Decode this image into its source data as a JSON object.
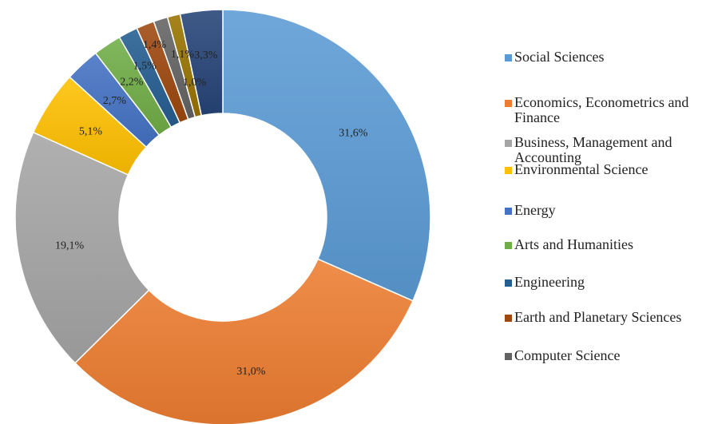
{
  "chart_data": {
    "type": "donut",
    "title": "",
    "series": [
      {
        "name": "Social Sciences",
        "value": 31.6,
        "label": "31,6%",
        "color": "#5B9BD5"
      },
      {
        "name": "Economics, Econometrics and Finance",
        "value": 31.0,
        "label": "31,0%",
        "color": "#ED7D31"
      },
      {
        "name": "Business, Management and Accounting",
        "value": 19.1,
        "label": "19,1%",
        "color": "#A5A5A5"
      },
      {
        "name": "Environmental Science",
        "value": 5.1,
        "label": "5,1%",
        "color": "#FFC000"
      },
      {
        "name": "Energy",
        "value": 2.7,
        "label": "2,7%",
        "color": "#4472C4"
      },
      {
        "name": "Arts and Humanities",
        "value": 2.2,
        "label": "2,2%",
        "color": "#70AD47"
      },
      {
        "name": "Engineering",
        "value": 1.5,
        "label": "1,5%",
        "color": "#255E91"
      },
      {
        "name": "Earth and Planetary Sciences",
        "value": 1.4,
        "label": "1,4%",
        "color": "#9E480E"
      },
      {
        "name": "Computer Science",
        "value": 1.1,
        "label": "1,1%",
        "color": "#636363"
      },
      {
        "name": "",
        "value": 1.0,
        "label": "1,0%",
        "color": "#997300"
      },
      {
        "name": "",
        "value": 3.3,
        "label": "3,3%",
        "color": "#264478"
      }
    ],
    "legend": {
      "placement": "right",
      "items": [
        "Social Sciences",
        "Economics, Econometrics and Finance",
        "Business, Management and Accounting",
        "Environmental Science",
        "Energy",
        "Arts and Humanities",
        "Engineering",
        "Earth and Planetary Sciences",
        "Computer Science"
      ]
    }
  }
}
